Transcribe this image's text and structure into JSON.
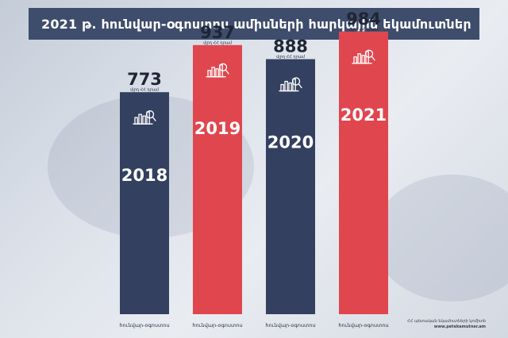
{
  "title": "2021 թ. հունվար-օգոստոս ամիսների  հարկային եկամուտներ",
  "source": {
    "line1": "ՀՀ պետական եկամուտների կոմիտե",
    "url": "www.petekamutner.am"
  },
  "colors": {
    "banner": "#3e4d6c",
    "navy": "#33405f",
    "red": "#e0464e",
    "value_text": "#1f2535"
  },
  "chart_data": {
    "type": "bar",
    "categories": [
      "հունվար-օգոստոս",
      "հունվար-օգոստոս",
      "հունվար-օգոստոս",
      "հունվար-օգոստոս"
    ],
    "years": [
      "2018",
      "2019",
      "2020",
      "2021"
    ],
    "values": [
      773,
      937,
      888,
      984
    ],
    "value_labels": [
      "773",
      "937",
      "888",
      "984"
    ],
    "unit": "մլրդ ՀՀ դրամ",
    "bar_colors": [
      "#33405f",
      "#e0464e",
      "#33405f",
      "#e0464e"
    ],
    "icon": "chart-magnifier-icon",
    "grid": false,
    "legend": "none"
  }
}
